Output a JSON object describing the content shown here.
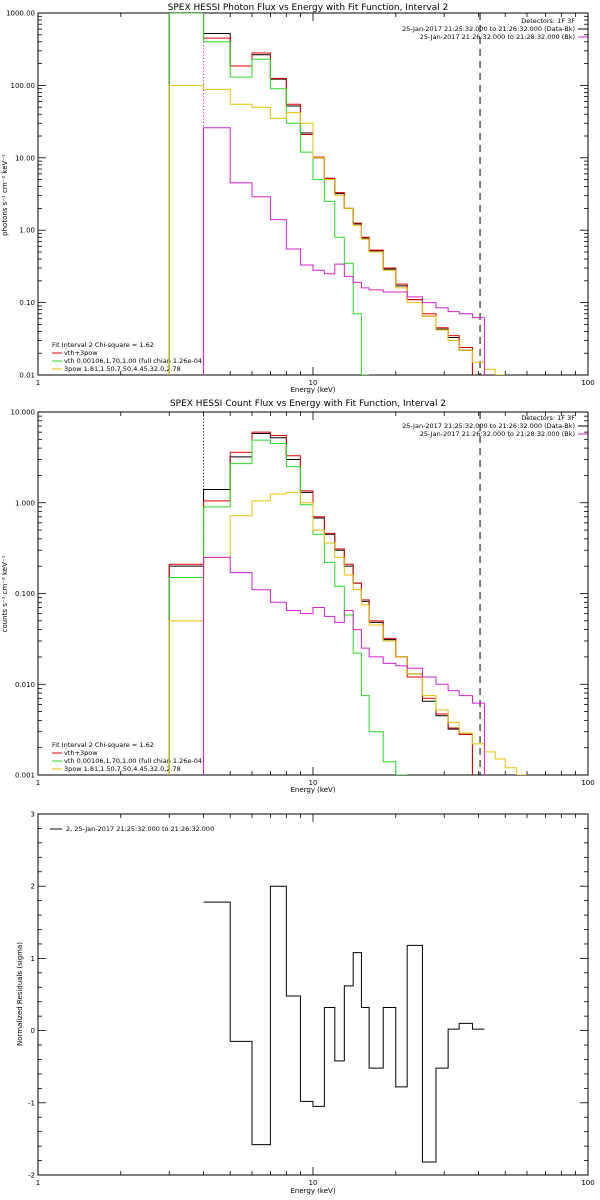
{
  "colors": {
    "black": "#000000",
    "red": "#e00000",
    "green": "#22dd22",
    "yellow": "#e6c000",
    "magenta": "#d020d0"
  },
  "chart_data": [
    {
      "type": "line",
      "title": "SPEX HESSI Photon Flux vs Energy with Fit Function, Interval 2",
      "xlabel": "Energy (keV)",
      "ylabel": "photons s⁻¹ cm⁻² keV⁻¹",
      "xscale": "log",
      "yscale": "log",
      "xlim": [
        1,
        100
      ],
      "ylim": [
        0.01,
        1000
      ],
      "xticks": [
        1,
        10,
        100
      ],
      "xtick_labels": [
        "1",
        "10",
        "100"
      ],
      "yticks": [
        0.01,
        0.1,
        1,
        10,
        100,
        1000
      ],
      "ytick_labels": [
        "0.01",
        "0.10",
        "1.00",
        "10.00",
        "100.00",
        "1000.00"
      ],
      "vlines": [
        {
          "x": 4.0,
          "style": "dotted",
          "color": "magenta"
        },
        {
          "x": 40.5,
          "style": "dashed",
          "color": "black"
        }
      ],
      "top_right_text": [
        "Detectors: 1F 3F",
        "25-Jan-2017 21:25:32.000 to 21:26:32.000 (Data-Bk)",
        "25-Jan-2017 21:26:32.000 to 21:28:32.000 (Bk)"
      ],
      "top_right_legend": [
        {
          "text": "25-Jan-2017 21:25:32.000 to 21:26:32.000 (Data-Bk)",
          "color": "black"
        },
        {
          "text": "25-Jan-2017 21:26:32.000 to 21:28:32.000 (Bk)",
          "color": "magenta"
        }
      ],
      "fit_text": "Fit Interval 2   Chi-square = 1.62",
      "fit_legend": [
        {
          "text": "vth+3pow",
          "color": "red"
        },
        {
          "text": "vth 0.00106,1.70,1.00  (full chian 1.26e-04",
          "color": "green"
        },
        {
          "text": "3pow 1.81,1.50,7.50,4.45,32.0,2.78",
          "color": "yellow"
        }
      ],
      "edges": [
        3,
        4,
        5,
        6,
        7,
        8,
        9,
        10,
        11,
        12,
        13,
        14,
        15,
        16,
        18,
        20,
        22,
        25,
        28,
        31,
        34,
        38,
        42,
        46,
        50
      ],
      "series": [
        {
          "color": "black",
          "values": [
            1000,
            520,
            185,
            265,
            122,
            52,
            22,
            10,
            5.2,
            3.2,
            2.0,
            1.22,
            0.78,
            0.52,
            0.29,
            0.17,
            0.11,
            0.065,
            0.043,
            0.033,
            0.022,
            null,
            null,
            null
          ]
        },
        {
          "color": "red",
          "values": [
            1000,
            450,
            185,
            280,
            125,
            55,
            21,
            10.2,
            5.2,
            3.3,
            2.0,
            1.25,
            0.8,
            0.53,
            0.3,
            0.18,
            0.11,
            0.07,
            0.045,
            0.035,
            0.024,
            null,
            null,
            null
          ]
        },
        {
          "color": "green",
          "values": [
            1000,
            400,
            130,
            230,
            90,
            30,
            12,
            5.0,
            2.5,
            0.8,
            0.35,
            0.07,
            0.01,
            null,
            null,
            null,
            null,
            null,
            null,
            null,
            null,
            null,
            null,
            null
          ]
        },
        {
          "color": "yellow",
          "values": [
            100,
            88,
            55,
            50,
            35,
            42,
            30,
            10,
            5.0,
            3.0,
            2.0,
            1.15,
            0.75,
            0.5,
            0.28,
            0.16,
            0.1,
            0.065,
            0.042,
            0.03,
            0.022,
            0.015,
            0.012,
            0.01
          ]
        },
        {
          "color": "magenta",
          "values": [
            null,
            26,
            4.5,
            2.9,
            1.4,
            0.55,
            0.33,
            0.28,
            0.25,
            0.34,
            0.23,
            0.19,
            0.16,
            0.15,
            0.14,
            0.14,
            0.12,
            0.1,
            0.085,
            0.075,
            0.07,
            0.062,
            null,
            null
          ]
        }
      ]
    },
    {
      "type": "line",
      "title": "SPEX HESSI Count Flux vs Energy with Fit Function, Interval 2",
      "xlabel": "Energy (keV)",
      "ylabel": "counts s⁻¹ cm⁻² keV⁻¹",
      "xscale": "log",
      "yscale": "log",
      "xlim": [
        1,
        100
      ],
      "ylim": [
        0.001,
        10
      ],
      "xticks": [
        1,
        10,
        100
      ],
      "xtick_labels": [
        "1",
        "10",
        "100"
      ],
      "yticks": [
        0.001,
        0.01,
        0.1,
        1,
        10
      ],
      "ytick_labels": [
        "0.001",
        "0.010",
        "0.100",
        "1.000",
        "10.000"
      ],
      "vlines": [
        {
          "x": 4.0,
          "style": "dotted",
          "color": "black"
        },
        {
          "x": 40.5,
          "style": "dashed",
          "color": "black"
        }
      ],
      "top_right_text": [
        "Detectors: 1F 3F",
        "25-Jan-2017 21:25:32.000 to 21:26:32.000 (Data-Bk)",
        "25-Jan-2017 21:26:32.000 to 21:28:32.000 (Bk)"
      ],
      "top_right_legend": [
        {
          "text": "25-Jan-2017 21:25:32.000 to 21:26:32.000 (Data-Bk)",
          "color": "black"
        },
        {
          "text": "25-Jan-2017 21:26:32.000 to 21:28:32.000 (Bk)",
          "color": "magenta"
        }
      ],
      "fit_text": "Fit Interval 2   Chi-square = 1.62",
      "fit_legend": [
        {
          "text": "vth+3pow",
          "color": "red"
        },
        {
          "text": "vth 0.00106,1.70,1.00  (full chian 1.26e-04",
          "color": "green"
        },
        {
          "text": "3pow 1.81,1.50,7.50,4.45,32.0,2.78",
          "color": "yellow"
        }
      ],
      "edges": [
        3,
        4,
        5,
        6,
        7,
        8,
        9,
        10,
        11,
        12,
        13,
        14,
        15,
        16,
        18,
        20,
        22,
        25,
        28,
        31,
        34,
        38,
        42,
        46,
        50,
        55,
        60,
        66,
        72
      ],
      "series": [
        {
          "color": "black",
          "values": [
            0.2,
            1.4,
            3.2,
            5.8,
            5.2,
            3.0,
            1.3,
            0.68,
            0.45,
            0.3,
            0.2,
            0.13,
            0.082,
            0.048,
            0.031,
            0.02,
            0.013,
            0.0065,
            0.0045,
            0.0032,
            0.0028,
            null,
            null,
            null,
            null,
            null,
            null,
            null
          ]
        },
        {
          "color": "red",
          "values": [
            0.21,
            1.05,
            3.6,
            6.0,
            5.5,
            3.3,
            1.35,
            0.7,
            0.46,
            0.31,
            0.21,
            0.13,
            0.085,
            0.05,
            0.032,
            0.02,
            0.012,
            0.007,
            0.0047,
            0.0033,
            0.0028,
            null,
            null,
            null,
            null,
            null,
            null,
            null
          ]
        },
        {
          "color": "green",
          "values": [
            0.15,
            0.9,
            2.7,
            4.9,
            4.5,
            2.5,
            0.95,
            0.45,
            0.22,
            0.12,
            0.058,
            0.022,
            0.0075,
            0.003,
            0.0014,
            0.001,
            null,
            null,
            null,
            null,
            null,
            null,
            null,
            null,
            null,
            null,
            null,
            null
          ]
        },
        {
          "color": "yellow",
          "values": [
            0.05,
            0.25,
            0.72,
            1.05,
            1.25,
            1.3,
            1.0,
            0.5,
            0.36,
            0.25,
            0.16,
            0.11,
            0.075,
            0.045,
            0.03,
            0.02,
            0.013,
            0.0075,
            0.0052,
            0.0038,
            0.0029,
            0.0022,
            0.0018,
            0.0015,
            0.0012,
            0.001,
            null,
            null
          ]
        },
        {
          "color": "magenta",
          "values": [
            null,
            0.25,
            0.17,
            0.11,
            0.08,
            0.065,
            0.06,
            0.07,
            0.056,
            0.048,
            0.065,
            0.04,
            0.025,
            0.02,
            0.017,
            0.016,
            0.015,
            0.012,
            0.01,
            0.0085,
            0.0075,
            0.0062,
            null,
            null,
            null,
            null,
            null,
            null
          ]
        }
      ]
    },
    {
      "type": "line",
      "title": "",
      "xlabel": "Energy (keV)",
      "ylabel": "Normalized Residuals (sigma)",
      "xscale": "log",
      "xlim": [
        1,
        100
      ],
      "ylim": [
        -2,
        3
      ],
      "xticks": [
        1,
        10,
        100
      ],
      "xtick_labels": [
        "1",
        "10",
        "100"
      ],
      "yticks": [
        -2,
        -1,
        0,
        1,
        2,
        3
      ],
      "ytick_labels": [
        "-2",
        "-1",
        "0",
        "1",
        "2",
        "3"
      ],
      "legend": [
        {
          "text": "2, 25-Jan-2017 21:25:32.000 to 21:26:32.000",
          "color": "black"
        }
      ],
      "edges": [
        4,
        5,
        6,
        7,
        8,
        9,
        10,
        11,
        12,
        13,
        14,
        15,
        16,
        18,
        20,
        22,
        25,
        28,
        31,
        34,
        38,
        42
      ],
      "series": [
        {
          "color": "black",
          "values": [
            1.78,
            -0.15,
            -1.58,
            2.0,
            0.48,
            -0.98,
            -1.05,
            0.32,
            -0.42,
            0.62,
            1.08,
            0.32,
            -0.52,
            0.32,
            -0.78,
            1.18,
            -1.82,
            -0.52,
            0.02,
            0.1,
            0.02
          ]
        }
      ]
    }
  ]
}
